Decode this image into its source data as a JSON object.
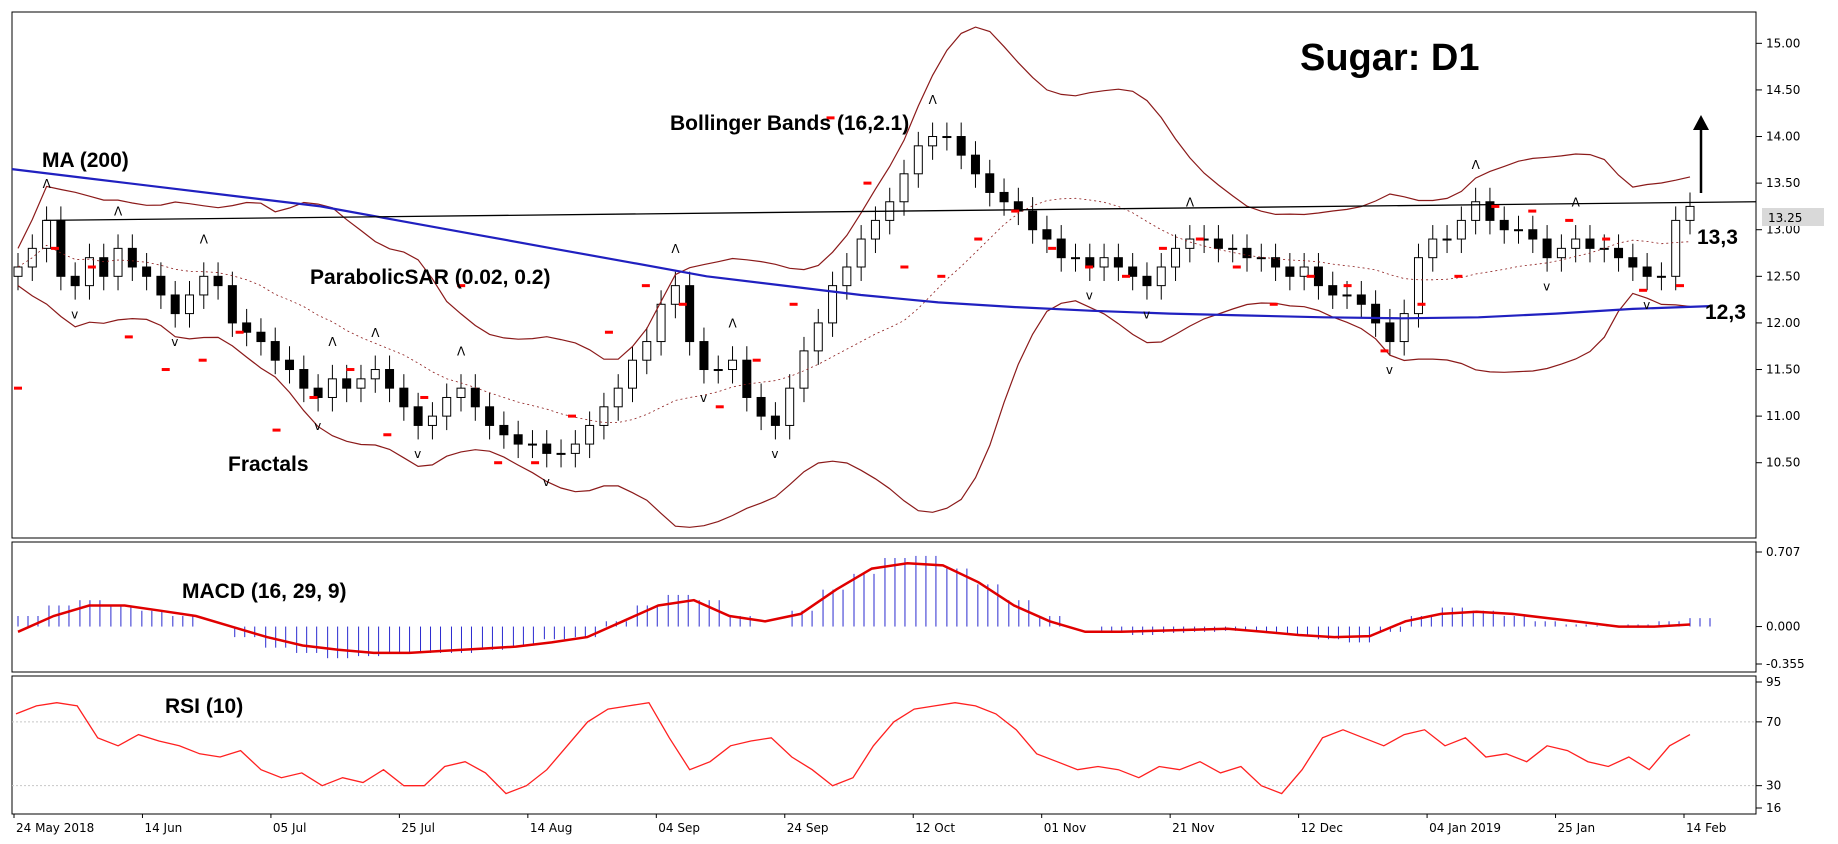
{
  "chart_data": {
    "type": "candlestick",
    "title": "Sugar: D1",
    "dates": [
      "24 May 2018",
      "14 Jun",
      "05 Jul",
      "25 Jul",
      "14 Aug",
      "04 Sep",
      "24 Sep",
      "12 Oct",
      "01 Nov",
      "21 Nov",
      "12 Dec",
      "04 Jan 2019",
      "25 Jan",
      "14 Feb"
    ],
    "price_axis": {
      "ticks": [
        "15.00",
        "14.50",
        "14.00",
        "13.50",
        "13.00",
        "12.50",
        "12.00",
        "11.50",
        "11.00",
        "10.50"
      ],
      "ylim": [
        10.1,
        15.1
      ],
      "current_price": "13.25"
    },
    "indicators": {
      "ma_label": "MA (200)",
      "sar_label": "ParabolicSAR (0.02, 0.2)",
      "bb_label": "Bollinger Bands (16,2.1)",
      "fractals_label": "Fractals",
      "macd_label": "MACD (16, 29, 9)",
      "rsi_label": "RSI (10)"
    },
    "levels": [
      {
        "label": "13,3",
        "value": 13.3
      },
      {
        "label": "12,3",
        "value": 12.3
      }
    ],
    "macd_axis": {
      "ticks": [
        "0.707",
        "0.000",
        "-0.355"
      ],
      "ylim": [
        -0.355,
        0.707
      ]
    },
    "rsi_axis": {
      "ticks": [
        "95",
        "70",
        "30",
        "16"
      ],
      "ylim": [
        16,
        95
      ]
    },
    "closes": [
      12.6,
      12.8,
      13.1,
      12.5,
      12.4,
      12.7,
      12.5,
      12.8,
      12.6,
      12.5,
      12.3,
      12.1,
      12.3,
      12.5,
      12.4,
      12.0,
      11.9,
      11.8,
      11.6,
      11.5,
      11.3,
      11.2,
      11.4,
      11.3,
      11.4,
      11.5,
      11.3,
      11.1,
      10.9,
      11.0,
      11.2,
      11.3,
      11.1,
      10.9,
      10.8,
      10.7,
      10.7,
      10.6,
      10.6,
      10.7,
      10.9,
      11.1,
      11.3,
      11.6,
      11.8,
      12.2,
      12.4,
      11.8,
      11.5,
      11.5,
      11.6,
      11.2,
      11.0,
      10.9,
      11.3,
      11.7,
      12.0,
      12.4,
      12.6,
      12.9,
      13.1,
      13.3,
      13.6,
      13.9,
      14.0,
      14.0,
      13.8,
      13.6,
      13.4,
      13.3,
      13.2,
      13.0,
      12.9,
      12.7,
      12.7,
      12.6,
      12.7,
      12.6,
      12.5,
      12.4,
      12.6,
      12.8,
      12.9,
      12.9,
      12.8,
      12.8,
      12.7,
      12.7,
      12.6,
      12.5,
      12.6,
      12.4,
      12.3,
      12.3,
      12.2,
      12.0,
      11.8,
      12.1,
      12.7,
      12.9,
      12.9,
      13.1,
      13.3,
      13.1,
      13.0,
      13.0,
      12.9,
      12.7,
      12.8,
      12.9,
      12.8,
      12.8,
      12.7,
      12.6,
      12.5,
      12.5,
      13.1,
      13.25
    ],
    "ma200": [
      13.65,
      13.55,
      13.45,
      13.35,
      13.25,
      13.1,
      12.95,
      12.8,
      12.65,
      12.5,
      12.4,
      12.3,
      12.22,
      12.17,
      12.13,
      12.1,
      12.08,
      12.06,
      12.05,
      12.06,
      12.1,
      12.15,
      12.18
    ],
    "sar": [
      11.3,
      12.8,
      12.6,
      11.85,
      11.5,
      11.6,
      11.9,
      10.85,
      11.2,
      11.5,
      10.8,
      11.2,
      12.4,
      10.5,
      10.5,
      11.0,
      11.9,
      12.4,
      12.2,
      11.1,
      11.6,
      12.2,
      14.2,
      13.5,
      12.6,
      12.5,
      12.9,
      13.2,
      12.8,
      12.6,
      12.5,
      12.8,
      12.9,
      12.6,
      12.2,
      12.5,
      12.4,
      11.7,
      12.2,
      12.5,
      13.25,
      13.2,
      13.1,
      12.9,
      12.35,
      12.4
    ],
    "macd": [
      0.1,
      0.2,
      0.25,
      0.2,
      0.15,
      0.1,
      0.0,
      -0.1,
      -0.2,
      -0.25,
      -0.3,
      -0.28,
      -0.25,
      -0.25,
      -0.25,
      -0.22,
      -0.18,
      -0.12,
      -0.1,
      0.05,
      0.2,
      0.3,
      0.25,
      0.1,
      0.0,
      0.15,
      0.35,
      0.5,
      0.65,
      0.67,
      0.55,
      0.4,
      0.25,
      0.1,
      0.0,
      -0.05,
      -0.08,
      -0.06,
      -0.05,
      -0.04,
      -0.05,
      -0.08,
      -0.12,
      -0.15,
      -0.05,
      0.1,
      0.18,
      0.15,
      0.1,
      0.05,
      0.02,
      0.01,
      0.02,
      0.05,
      0.08
    ],
    "signal": [
      -0.05,
      0.1,
      0.2,
      0.2,
      0.15,
      0.1,
      0.0,
      -0.1,
      -0.18,
      -0.22,
      -0.25,
      -0.25,
      -0.23,
      -0.21,
      -0.19,
      -0.15,
      -0.1,
      0.05,
      0.2,
      0.25,
      0.1,
      0.05,
      0.12,
      0.35,
      0.55,
      0.6,
      0.58,
      0.42,
      0.2,
      0.05,
      -0.05,
      -0.05,
      -0.04,
      -0.03,
      -0.02,
      -0.05,
      -0.08,
      -0.1,
      -0.09,
      0.05,
      0.12,
      0.14,
      0.12,
      0.08,
      0.04,
      0.0,
      0.0,
      0.02
    ],
    "rsi": [
      75,
      80,
      82,
      80,
      60,
      55,
      62,
      58,
      55,
      50,
      48,
      52,
      40,
      35,
      38,
      30,
      35,
      32,
      40,
      30,
      30,
      42,
      45,
      38,
      25,
      30,
      40,
      55,
      70,
      78,
      80,
      82,
      60,
      40,
      45,
      55,
      58,
      60,
      48,
      40,
      30,
      35,
      55,
      70,
      78,
      80,
      82,
      80,
      75,
      65,
      50,
      45,
      40,
      42,
      40,
      35,
      42,
      40,
      45,
      38,
      42,
      30,
      25,
      40,
      60,
      65,
      60,
      55,
      62,
      65,
      55,
      60,
      48,
      50,
      45,
      55,
      52,
      45,
      42,
      48,
      40,
      55,
      62
    ]
  }
}
